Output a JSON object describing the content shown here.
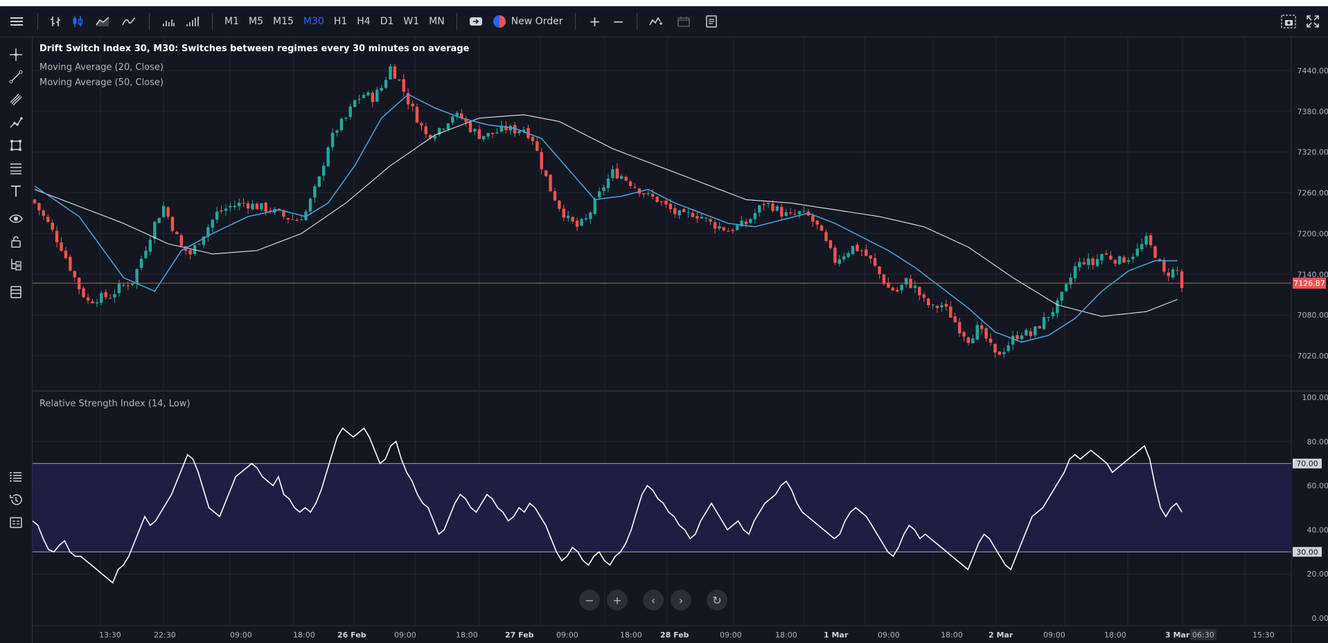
{
  "toolbar": {
    "timeframes": [
      "M1",
      "M5",
      "M15",
      "M30",
      "H1",
      "H4",
      "D1",
      "W1",
      "MN"
    ],
    "active_timeframe": "M30",
    "new_order_label": "New Order"
  },
  "legend": {
    "title": "Drift Switch Index 30, M30: Switches between regimes every 30 minutes on average",
    "ma20": "Moving Average (20, Close)",
    "ma50": "Moving Average (50, Close)",
    "rsi": "Relative Strength Index (14, Low)"
  },
  "colors": {
    "background": "#131722",
    "bull": "#26a69a",
    "bear": "#ef5350",
    "ma20": "#4a9fd4",
    "ma50": "#e8e8e8",
    "rsi_band": "#1e1e45",
    "price_line": "#ef5350"
  },
  "price_axis": {
    "labels": [
      "7440.00",
      "7380.00",
      "7320.00",
      "7260.00",
      "7200.00",
      "7140.00",
      "7080.00",
      "7020.00"
    ],
    "current_price": "7126.87"
  },
  "rsi_axis": {
    "labels": [
      "100.00",
      "80.00",
      "60.00",
      "40.00",
      "20.00",
      "0.00"
    ],
    "upper_band": "70.00",
    "lower_band": "30.00"
  },
  "time_axis": {
    "labels": [
      "13:30",
      "22:30",
      "09:00",
      "18:00",
      "26 Feb",
      "09:00",
      "18:00",
      "27 Feb",
      "09:00",
      "18:00",
      "28 Feb",
      "09:00",
      "18:00",
      "1 Mar",
      "09:00",
      "18:00",
      "2 Mar",
      "09:00",
      "18:00",
      "3 Mar",
      "06:30",
      "15:30"
    ],
    "bold": [
      "26 Feb",
      "27 Feb",
      "28 Feb",
      "1 Mar",
      "2 Mar",
      "3 Mar"
    ],
    "highlight": "06:30"
  },
  "icons": [
    "menu-icon",
    "bar-chart-icon",
    "candles-icon",
    "area-icon",
    "line-icon",
    "volume-icon",
    "volume-profile-icon",
    "sync-icon",
    "new-order-icon",
    "zoom-in-icon",
    "zoom-out-icon",
    "indicators-icon",
    "calendar-icon",
    "notes-icon",
    "screenshot-icon",
    "fullscreen-icon"
  ],
  "chart_data": {
    "type": "candlestick",
    "title": "Drift Switch Index 30, M30: Switches between regimes every 30 minutes on average",
    "ylim": [
      7000,
      7460
    ],
    "current_price": 7126.87,
    "close_path": [
      [
        0,
        7245
      ],
      [
        3,
        7215
      ],
      [
        6,
        7180
      ],
      [
        8,
        7150
      ],
      [
        10,
        7120
      ],
      [
        12,
        7100
      ],
      [
        14,
        7105
      ],
      [
        17,
        7108
      ],
      [
        19,
        7120
      ],
      [
        22,
        7130
      ],
      [
        25,
        7180
      ],
      [
        27,
        7215
      ],
      [
        29,
        7240
      ],
      [
        31,
        7210
      ],
      [
        33,
        7180
      ],
      [
        35,
        7170
      ],
      [
        38,
        7200
      ],
      [
        41,
        7230
      ],
      [
        44,
        7240
      ],
      [
        47,
        7245
      ],
      [
        50,
        7240
      ],
      [
        53,
        7235
      ],
      [
        56,
        7225
      ],
      [
        59,
        7220
      ],
      [
        61,
        7232
      ],
      [
        64,
        7280
      ],
      [
        66,
        7330
      ],
      [
        68,
        7355
      ],
      [
        70,
        7370
      ],
      [
        72,
        7395
      ],
      [
        74,
        7405
      ],
      [
        76,
        7400
      ],
      [
        78,
        7415
      ],
      [
        80,
        7445
      ],
      [
        82,
        7425
      ],
      [
        84,
        7395
      ],
      [
        86,
        7370
      ],
      [
        88,
        7345
      ],
      [
        90,
        7350
      ],
      [
        92,
        7360
      ],
      [
        94,
        7375
      ],
      [
        96,
        7370
      ],
      [
        98,
        7355
      ],
      [
        100,
        7345
      ],
      [
        102,
        7345
      ],
      [
        104,
        7350
      ],
      [
        106,
        7355
      ],
      [
        108,
        7352
      ],
      [
        110,
        7355
      ],
      [
        112,
        7340
      ],
      [
        114,
        7300
      ],
      [
        116,
        7265
      ],
      [
        118,
        7240
      ],
      [
        120,
        7220
      ],
      [
        122,
        7210
      ],
      [
        124,
        7220
      ],
      [
        126,
        7245
      ],
      [
        128,
        7270
      ],
      [
        130,
        7290
      ],
      [
        132,
        7285
      ],
      [
        134,
        7275
      ],
      [
        136,
        7265
      ],
      [
        138,
        7255
      ],
      [
        140,
        7250
      ],
      [
        142,
        7240
      ],
      [
        144,
        7230
      ],
      [
        146,
        7225
      ],
      [
        148,
        7230
      ],
      [
        150,
        7225
      ],
      [
        152,
        7215
      ],
      [
        154,
        7210
      ],
      [
        156,
        7205
      ],
      [
        158,
        7210
      ],
      [
        160,
        7215
      ],
      [
        162,
        7230
      ],
      [
        164,
        7245
      ],
      [
        166,
        7240
      ],
      [
        168,
        7230
      ],
      [
        170,
        7225
      ],
      [
        172,
        7230
      ],
      [
        174,
        7225
      ],
      [
        176,
        7210
      ],
      [
        178,
        7185
      ],
      [
        180,
        7160
      ],
      [
        182,
        7170
      ],
      [
        184,
        7180
      ],
      [
        186,
        7175
      ],
      [
        188,
        7160
      ],
      [
        190,
        7140
      ],
      [
        192,
        7120
      ],
      [
        194,
        7115
      ],
      [
        196,
        7130
      ],
      [
        198,
        7120
      ],
      [
        200,
        7100
      ],
      [
        202,
        7090
      ],
      [
        204,
        7095
      ],
      [
        206,
        7080
      ],
      [
        208,
        7060
      ],
      [
        210,
        7045
      ],
      [
        212,
        7060
      ],
      [
        214,
        7045
      ],
      [
        216,
        7020
      ],
      [
        218,
        7030
      ],
      [
        220,
        7045
      ],
      [
        222,
        7055
      ],
      [
        224,
        7050
      ],
      [
        226,
        7065
      ],
      [
        228,
        7080
      ],
      [
        230,
        7095
      ],
      [
        232,
        7120
      ],
      [
        234,
        7150
      ],
      [
        236,
        7160
      ],
      [
        238,
        7155
      ],
      [
        240,
        7170
      ],
      [
        242,
        7165
      ],
      [
        244,
        7160
      ],
      [
        246,
        7165
      ],
      [
        248,
        7175
      ],
      [
        250,
        7190
      ],
      [
        252,
        7170
      ],
      [
        254,
        7140
      ],
      [
        256,
        7145
      ],
      [
        257,
        7145
      ],
      [
        258,
        7120
      ]
    ],
    "ma20_path": [
      [
        0,
        7270
      ],
      [
        10,
        7225
      ],
      [
        20,
        7135
      ],
      [
        27,
        7115
      ],
      [
        33,
        7175
      ],
      [
        40,
        7200
      ],
      [
        48,
        7225
      ],
      [
        55,
        7235
      ],
      [
        61,
        7225
      ],
      [
        66,
        7245
      ],
      [
        72,
        7300
      ],
      [
        78,
        7370
      ],
      [
        84,
        7405
      ],
      [
        90,
        7385
      ],
      [
        96,
        7370
      ],
      [
        102,
        7360
      ],
      [
        108,
        7355
      ],
      [
        114,
        7340
      ],
      [
        120,
        7295
      ],
      [
        126,
        7250
      ],
      [
        132,
        7255
      ],
      [
        138,
        7265
      ],
      [
        144,
        7245
      ],
      [
        150,
        7230
      ],
      [
        156,
        7215
      ],
      [
        162,
        7210
      ],
      [
        168,
        7220
      ],
      [
        174,
        7230
      ],
      [
        180,
        7215
      ],
      [
        186,
        7195
      ],
      [
        192,
        7175
      ],
      [
        198,
        7150
      ],
      [
        204,
        7120
      ],
      [
        210,
        7090
      ],
      [
        216,
        7055
      ],
      [
        222,
        7040
      ],
      [
        228,
        7050
      ],
      [
        234,
        7075
      ],
      [
        240,
        7115
      ],
      [
        246,
        7145
      ],
      [
        252,
        7160
      ],
      [
        257,
        7160
      ]
    ],
    "ma50_path": [
      [
        0,
        7265
      ],
      [
        10,
        7240
      ],
      [
        20,
        7215
      ],
      [
        30,
        7185
      ],
      [
        40,
        7170
      ],
      [
        50,
        7175
      ],
      [
        60,
        7200
      ],
      [
        70,
        7245
      ],
      [
        80,
        7300
      ],
      [
        90,
        7345
      ],
      [
        100,
        7370
      ],
      [
        110,
        7375
      ],
      [
        118,
        7365
      ],
      [
        130,
        7325
      ],
      [
        140,
        7300
      ],
      [
        150,
        7275
      ],
      [
        160,
        7250
      ],
      [
        170,
        7245
      ],
      [
        180,
        7235
      ],
      [
        190,
        7225
      ],
      [
        200,
        7210
      ],
      [
        210,
        7180
      ],
      [
        220,
        7135
      ],
      [
        230,
        7095
      ],
      [
        240,
        7078
      ],
      [
        250,
        7085
      ],
      [
        257,
        7103
      ]
    ],
    "rsi": {
      "name": "Relative Strength Index (14, Low)",
      "ylim": [
        0,
        100
      ],
      "bands": [
        30,
        70
      ],
      "values": [
        44,
        42,
        36,
        31,
        30,
        33,
        35,
        30,
        28,
        28,
        26,
        24,
        22,
        20,
        18,
        16,
        22,
        24,
        28,
        34,
        40,
        46,
        42,
        44,
        48,
        52,
        56,
        62,
        68,
        74,
        72,
        66,
        58,
        50,
        48,
        46,
        52,
        58,
        64,
        66,
        68,
        70,
        68,
        64,
        62,
        60,
        64,
        56,
        54,
        50,
        48,
        50,
        48,
        52,
        58,
        66,
        74,
        82,
        86,
        84,
        82,
        84,
        86,
        82,
        76,
        70,
        72,
        78,
        80,
        72,
        66,
        62,
        56,
        52,
        50,
        44,
        38,
        40,
        46,
        52,
        56,
        54,
        50,
        48,
        52,
        56,
        54,
        50,
        48,
        44,
        46,
        50,
        48,
        52,
        50,
        46,
        42,
        36,
        30,
        26,
        28,
        32,
        30,
        26,
        24,
        28,
        30,
        26,
        24,
        28,
        30,
        34,
        40,
        48,
        56,
        60,
        58,
        54,
        52,
        48,
        46,
        42,
        40,
        36,
        38,
        44,
        48,
        52,
        48,
        44,
        40,
        42,
        44,
        40,
        38,
        44,
        48,
        52,
        54,
        56,
        60,
        62,
        58,
        52,
        48,
        46,
        44,
        42,
        40,
        38,
        36,
        38,
        44,
        48,
        50,
        48,
        46,
        42,
        38,
        34,
        30,
        28,
        32,
        38,
        42,
        40,
        36,
        38,
        36,
        34,
        32,
        30,
        28,
        26,
        24,
        22,
        28,
        34,
        38,
        36,
        32,
        28,
        24,
        22,
        28,
        34,
        40,
        46,
        48,
        50,
        54,
        58,
        62,
        66,
        72,
        74,
        72,
        74,
        76,
        74,
        72,
        70,
        66,
        68,
        70,
        72,
        74,
        76,
        78,
        72,
        60,
        50,
        46,
        50,
        52,
        48
      ]
    }
  }
}
